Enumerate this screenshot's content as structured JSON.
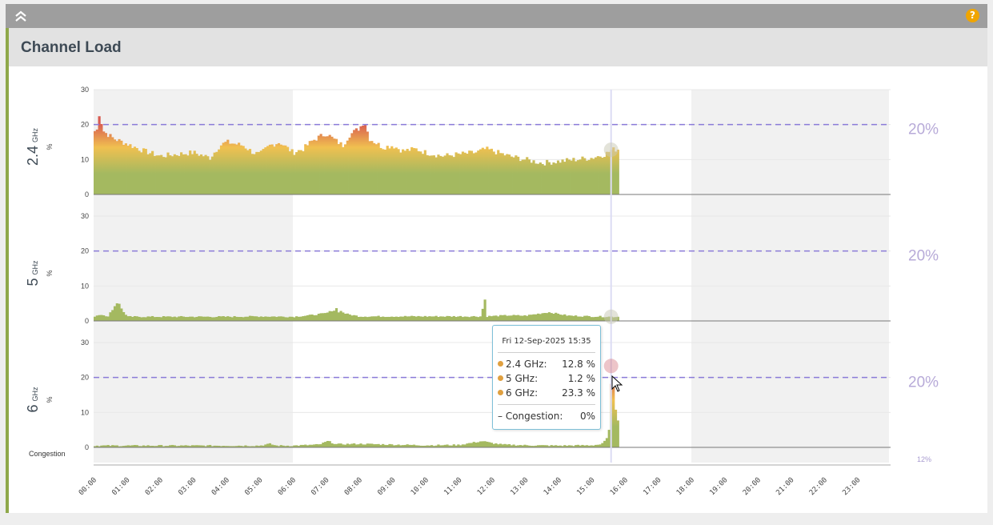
{
  "header": {
    "title": "Channel Load"
  },
  "icons": {
    "collapse": "double-chevron-up-icon",
    "help": "help-icon",
    "help_glyph": "?"
  },
  "colors": {
    "accent_bar": "#8fa84a",
    "threshold_line": "#8a7bd8",
    "low": "#a4b960",
    "mid": "#f0c050",
    "high": "#d85a50"
  },
  "chart_data": {
    "type": "bar",
    "x_ticks": [
      "00:00",
      "01:00",
      "02:00",
      "03:00",
      "04:00",
      "05:00",
      "06:00",
      "07:00",
      "08:00",
      "09:00",
      "10:00",
      "11:00",
      "12:00",
      "13:00",
      "14:00",
      "15:00",
      "16:00",
      "17:00",
      "18:00",
      "19:00",
      "20:00",
      "21:00",
      "22:00",
      "23:00"
    ],
    "y_ticks": [
      "0",
      "10",
      "20",
      "30"
    ],
    "ylim": [
      0,
      30
    ],
    "unit": "%",
    "threshold": 20,
    "threshold_label": "20%",
    "highlight_time": "15:35",
    "panels": [
      {
        "band": "2.4",
        "band_unit": "GHz",
        "keys": [
          [
            0,
            18
          ],
          [
            0.1,
            18.5
          ],
          [
            0.15,
            23.5
          ],
          [
            0.3,
            18
          ],
          [
            0.6,
            16
          ],
          [
            1,
            14.5
          ],
          [
            1.5,
            12.5
          ],
          [
            2,
            11
          ],
          [
            2.5,
            11.5
          ],
          [
            3,
            12
          ],
          [
            3.5,
            10.5
          ],
          [
            3.8,
            14
          ],
          [
            4,
            15
          ],
          [
            4.5,
            14
          ],
          [
            4.8,
            12
          ],
          [
            5,
            11.5
          ],
          [
            5.3,
            14
          ],
          [
            5.6,
            15
          ],
          [
            6,
            12
          ],
          [
            6.3,
            13
          ],
          [
            6.6,
            15.5
          ],
          [
            6.8,
            16.5
          ],
          [
            7,
            17.5
          ],
          [
            7.2,
            16
          ],
          [
            7.5,
            14
          ],
          [
            7.7,
            17
          ],
          [
            8,
            19
          ],
          [
            8.15,
            21
          ],
          [
            8.3,
            16
          ],
          [
            8.7,
            13.5
          ],
          [
            9,
            14
          ],
          [
            9.3,
            12.5
          ],
          [
            9.7,
            13
          ],
          [
            10,
            12
          ],
          [
            10.5,
            11
          ],
          [
            11,
            11.5
          ],
          [
            11.5,
            12
          ],
          [
            11.8,
            13
          ],
          [
            12,
            12.5
          ],
          [
            12.5,
            11
          ],
          [
            13,
            10
          ],
          [
            13.5,
            9
          ],
          [
            14,
            9.5
          ],
          [
            14.5,
            10
          ],
          [
            15,
            10.5
          ],
          [
            15.4,
            11.5
          ],
          [
            15.6,
            12.8
          ],
          [
            15.8,
            13
          ]
        ]
      },
      {
        "band": "5",
        "band_unit": "GHz",
        "keys": [
          [
            0,
            1.2
          ],
          [
            0.2,
            2
          ],
          [
            0.4,
            1
          ],
          [
            0.7,
            5.5
          ],
          [
            0.8,
            4
          ],
          [
            1,
            1.2
          ],
          [
            2,
            1.2
          ],
          [
            3,
            1.2
          ],
          [
            4,
            1.2
          ],
          [
            5,
            1.3
          ],
          [
            6,
            1.2
          ],
          [
            6.5,
            1.6
          ],
          [
            7,
            2.2
          ],
          [
            7.3,
            3.5
          ],
          [
            7.6,
            2
          ],
          [
            8,
            1.3
          ],
          [
            9,
            1.3
          ],
          [
            10,
            1.3
          ],
          [
            11,
            1.3
          ],
          [
            11.7,
            1.3
          ],
          [
            11.75,
            11.8
          ],
          [
            11.8,
            1.3
          ],
          [
            12.5,
            1.6
          ],
          [
            13,
            1.5
          ],
          [
            13.7,
            2.5
          ],
          [
            14.3,
            1.5
          ],
          [
            15,
            1.3
          ],
          [
            15.6,
            1.2
          ],
          [
            15.8,
            1.2
          ]
        ]
      },
      {
        "band": "6",
        "band_unit": "GHz",
        "keys": [
          [
            0,
            0.5
          ],
          [
            1,
            0.5
          ],
          [
            2,
            0.5
          ],
          [
            3,
            0.5
          ],
          [
            4,
            0.5
          ],
          [
            5,
            0.5
          ],
          [
            5.3,
            1
          ],
          [
            5.5,
            0.5
          ],
          [
            6,
            0.5
          ],
          [
            6.8,
            0.8
          ],
          [
            7.05,
            1.8
          ],
          [
            7.3,
            0.9
          ],
          [
            8,
            1
          ],
          [
            9,
            0.8
          ],
          [
            10,
            0.6
          ],
          [
            11,
            0.7
          ],
          [
            11.7,
            1.8
          ],
          [
            12,
            1.2
          ],
          [
            12.3,
            0.8
          ],
          [
            13,
            0.6
          ],
          [
            14,
            0.5
          ],
          [
            15,
            0.6
          ],
          [
            15.3,
            0.9
          ],
          [
            15.45,
            2.5
          ],
          [
            15.55,
            7.5
          ],
          [
            15.6,
            23.3
          ],
          [
            15.7,
            12
          ],
          [
            15.8,
            7.5
          ]
        ]
      }
    ],
    "congestion": {
      "label": "Congestion",
      "value_label": "12%"
    }
  },
  "tooltip": {
    "title": "Fri 12-Sep-2025 15:35",
    "rows": [
      {
        "label": "2.4 GHz:",
        "value": "12.8 %"
      },
      {
        "label": "5 GHz:",
        "value": "1.2 %"
      },
      {
        "label": "6 GHz:",
        "value": "23.3 %"
      }
    ],
    "congestion_label": "– Congestion:",
    "congestion_value": "0%"
  }
}
